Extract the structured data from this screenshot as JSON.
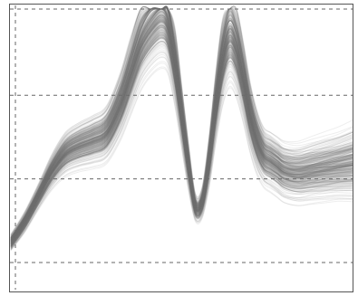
{
  "chart_data": {
    "type": "line",
    "title": "",
    "xlabel": "",
    "ylabel": "",
    "xlim": [
      0,
      1
    ],
    "ylim": [
      0,
      1
    ],
    "grid": {
      "horizontal": true,
      "vertical": true,
      "style": "dashed",
      "y_values": [
        0.0,
        0.33,
        0.66,
        1.0
      ],
      "x_values": [
        0.0
      ]
    },
    "legend": "none",
    "series_count": 300,
    "line_color": "#777777",
    "line_opacity": 0.12,
    "frame_color": "#555555",
    "grid_color": "#666666",
    "mean_profile": {
      "x": [
        0.0,
        0.04,
        0.08,
        0.12,
        0.16,
        0.2,
        0.24,
        0.28,
        0.32,
        0.35,
        0.38,
        0.41,
        0.44,
        0.46,
        0.48,
        0.5,
        0.52,
        0.54,
        0.56,
        0.58,
        0.6,
        0.62,
        0.64,
        0.66,
        0.68,
        0.7,
        0.72,
        0.74,
        0.76,
        0.78,
        0.8,
        0.84,
        0.88,
        0.92,
        0.96,
        1.0
      ],
      "y": [
        0.08,
        0.16,
        0.26,
        0.36,
        0.43,
        0.46,
        0.48,
        0.51,
        0.62,
        0.74,
        0.86,
        0.93,
        0.97,
        0.93,
        0.78,
        0.58,
        0.38,
        0.22,
        0.24,
        0.4,
        0.62,
        0.8,
        0.89,
        0.84,
        0.72,
        0.58,
        0.48,
        0.42,
        0.4,
        0.38,
        0.36,
        0.35,
        0.36,
        0.37,
        0.38,
        0.39
      ]
    },
    "spread_profile": [
      0.03,
      0.04,
      0.05,
      0.06,
      0.08,
      0.09,
      0.1,
      0.11,
      0.13,
      0.15,
      0.17,
      0.18,
      0.19,
      0.17,
      0.15,
      0.12,
      0.09,
      0.06,
      0.07,
      0.1,
      0.14,
      0.17,
      0.19,
      0.18,
      0.16,
      0.14,
      0.13,
      0.12,
      0.12,
      0.12,
      0.12,
      0.12,
      0.12,
      0.12,
      0.12,
      0.13
    ]
  }
}
